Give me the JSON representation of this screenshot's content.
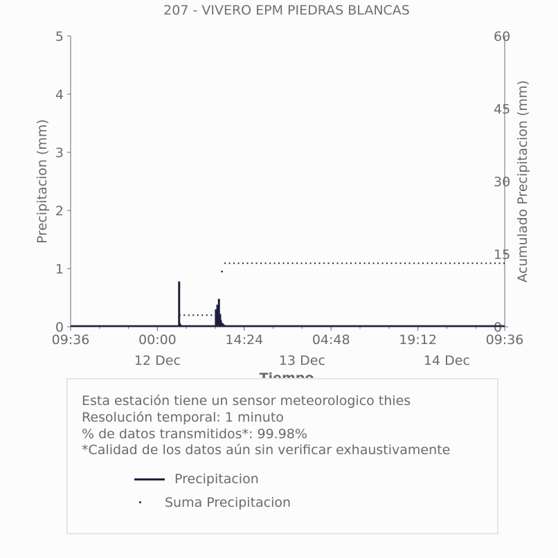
{
  "chart_data": {
    "type": "bar+line",
    "title": "207 - VIVERO EPM PIEDRAS BLANCAS",
    "xlabel": "Tiempo",
    "ylabel": "Precipitacion (mm)",
    "ylabel_right": "Acumulado Precipitacion (mm)",
    "ylim": [
      0,
      5
    ],
    "ylim_right": [
      0,
      60
    ],
    "yticks": [
      "0",
      "1",
      "2",
      "3",
      "4",
      "5"
    ],
    "yticks_right": [
      "0",
      "15",
      "30",
      "45",
      "60"
    ],
    "xlim_hours": [
      0,
      72
    ],
    "xtick_labels": [
      "09:36",
      "00:00",
      "14:24",
      "04:48",
      "19:12",
      "09:36"
    ],
    "xtick_hours": [
      0,
      14.4,
      28.8,
      43.2,
      57.6,
      72
    ],
    "date_labels": [
      {
        "label": "12 Dec",
        "hour": 14.4
      },
      {
        "label": "13 Dec",
        "hour": 38.4
      },
      {
        "label": "14 Dec",
        "hour": 62.4
      }
    ],
    "series": [
      {
        "name": "Precipitacion",
        "kind": "bars",
        "color": "#1f2040",
        "points": [
          {
            "x": 18.0,
            "y": 0.78
          },
          {
            "x": 18.1,
            "y": 0.06
          },
          {
            "x": 18.2,
            "y": 0.04
          },
          {
            "x": 24.1,
            "y": 0.3
          },
          {
            "x": 24.2,
            "y": 0.2
          },
          {
            "x": 24.35,
            "y": 0.38
          },
          {
            "x": 24.45,
            "y": 0.25
          },
          {
            "x": 24.6,
            "y": 0.48
          },
          {
            "x": 24.7,
            "y": 0.15
          },
          {
            "x": 24.8,
            "y": 0.22
          },
          {
            "x": 24.9,
            "y": 0.12
          },
          {
            "x": 25.0,
            "y": 0.08
          },
          {
            "x": 25.2,
            "y": 0.06
          },
          {
            "x": 25.4,
            "y": 0.04
          },
          {
            "x": 25.6,
            "y": 0.02
          }
        ]
      },
      {
        "name": "Suma Precipitacion",
        "kind": "dotted",
        "color": "#1f2040",
        "segments": [
          {
            "x_start": 18.0,
            "x_end": 23.8,
            "y": 2.4
          },
          {
            "x_start": 25.5,
            "x_end": 72.0,
            "y": 13.1
          }
        ],
        "points": [
          {
            "x": 24.6,
            "y": 4.5
          },
          {
            "x": 25.1,
            "y": 11.4
          }
        ]
      }
    ]
  },
  "info": {
    "line1": "Esta estación tiene un sensor meteorologico thies",
    "line2": "Resolución temporal: 1 minuto",
    "line3": "% de datos transmitidos*: 99.98%",
    "line4": "*Calidad de los datos aún sin verificar exhaustivamente"
  },
  "legend": {
    "item1": "Precipitacion",
    "item2": "Suma Precipitacion"
  }
}
